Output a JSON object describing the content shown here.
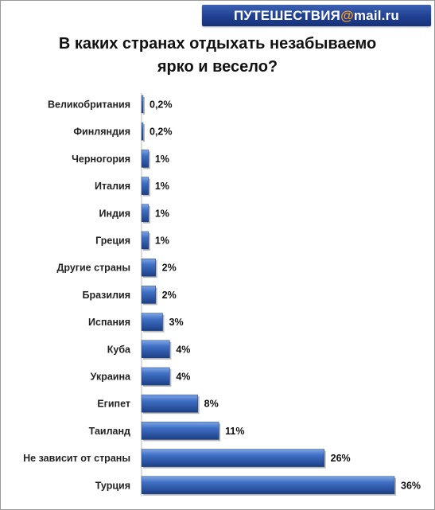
{
  "header": {
    "logo_main": "ПУТЕШЕСТВИЯ",
    "logo_at": "@",
    "logo_domain": "mail.ru"
  },
  "chart_data": {
    "type": "bar",
    "orientation": "horizontal",
    "title_line1": "В каких странах отдыхать незабываемо",
    "title_line2": "ярко и весело?",
    "categories": [
      "Великобритания",
      "Финляндия",
      "Черногория",
      "Италия",
      "Индия",
      "Греция",
      "Другие страны",
      "Бразилия",
      "Испания",
      "Куба",
      "Украина",
      "Египет",
      "Таиланд",
      "Не зависит от страны",
      "Турция"
    ],
    "values": [
      0.2,
      0.2,
      1,
      1,
      1,
      1,
      2,
      2,
      3,
      4,
      4,
      8,
      11,
      26,
      36
    ],
    "labels": [
      "0,2%",
      "0,2%",
      "1%",
      "1%",
      "1%",
      "1%",
      "2%",
      "2%",
      "3%",
      "4%",
      "4%",
      "8%",
      "11%",
      "26%",
      "36%"
    ],
    "unit": "%",
    "xlim": [
      0,
      36
    ],
    "grid": false,
    "legend": "none",
    "bar_color": "#2f5fb0"
  }
}
